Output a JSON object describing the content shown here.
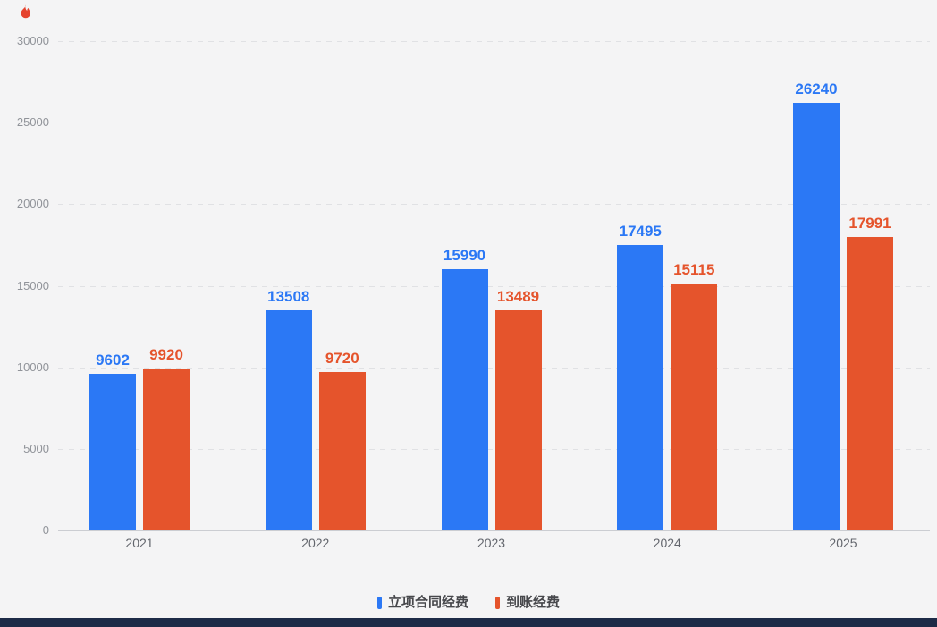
{
  "page": {
    "background": "#f4f4f5",
    "corner_icon_color": "#e5432e",
    "bottom_bar_color": "#1d2b47"
  },
  "chart_data": {
    "type": "bar",
    "title": "",
    "xlabel": "",
    "ylabel": "",
    "categories": [
      "2021",
      "2022",
      "2023",
      "2024",
      "2025"
    ],
    "series": [
      {
        "name": "立项合同经费",
        "key": "contract-funding",
        "color": "#2b78f5",
        "values": [
          9602,
          13508,
          15990,
          17495,
          26240
        ]
      },
      {
        "name": "到账经费",
        "key": "received-funding",
        "color": "#e5542c",
        "values": [
          9920,
          9720,
          13489,
          15115,
          17991
        ]
      }
    ],
    "ylim": [
      0,
      30000
    ],
    "y_ticks": [
      0,
      5000,
      10000,
      15000,
      20000,
      25000,
      30000
    ],
    "grid": "horizontal-dashed",
    "legend_position": "bottom",
    "value_labels": true
  },
  "legend": {
    "items": [
      {
        "label": "立项合同经费",
        "color": "#2b78f5"
      },
      {
        "label": "到账经费",
        "color": "#e5542c"
      }
    ]
  }
}
